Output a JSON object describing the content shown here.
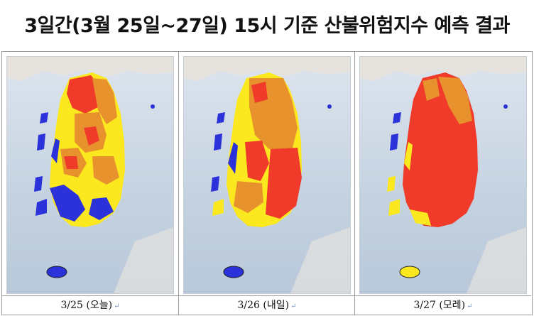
{
  "title": "3일간(3월 25일~27일) 15시 기준 산불위험지수 예측 결과",
  "colors": {
    "very_high": "#f03a2a",
    "high": "#e8922e",
    "moderate": "#fbe81e",
    "low": "#2b32d9",
    "sea": "#c9d6e3",
    "land_other": "#e6e3de"
  },
  "panels": [
    {
      "caption": "3/25 (오늘)",
      "return_mark": "↵"
    },
    {
      "caption": "3/26 (내일)",
      "return_mark": "↵"
    },
    {
      "caption": "3/27 (모레)",
      "return_mark": "↵"
    }
  ]
}
